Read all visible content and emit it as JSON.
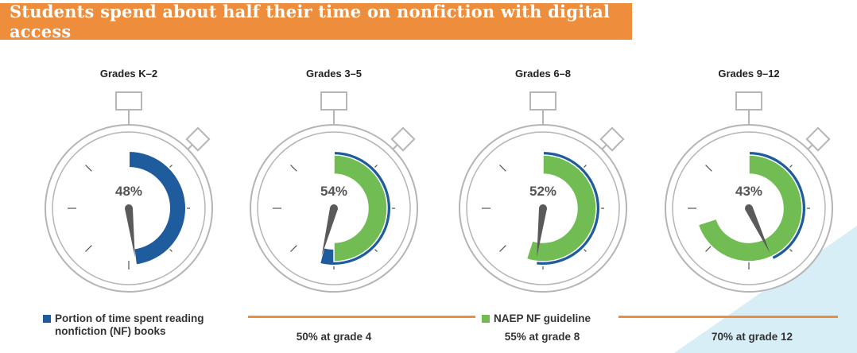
{
  "title": "Students spend about half their time on nonfiction with digital access",
  "colors": {
    "title_bg": "#ee8d3c",
    "nf_time": "#1f5c9e",
    "naep_guideline": "#72bd53",
    "guideline_line": "#ee8d3c",
    "stopwatch_outline": "#b5b5b5",
    "hand": "#5a5a5a",
    "corner_shape": "#d8eef6"
  },
  "chart_data": {
    "type": "radial",
    "title": "Students spend about half their time on nonfiction with digital access",
    "categories": [
      "Grades K–2",
      "Grades 3–5",
      "Grades 6–8",
      "Grades 9–12"
    ],
    "series": [
      {
        "name": "Portion of time spent reading nonfiction (NF) books",
        "values": [
          48,
          54,
          52,
          43
        ],
        "labels": [
          "48%",
          "54%",
          "52%",
          "43%"
        ]
      },
      {
        "name": "NAEP NF guideline",
        "values": [
          null,
          50,
          55,
          70
        ],
        "labels": [
          "",
          "50% at grade 4",
          "55% at grade 8",
          "70% at grade 12"
        ]
      }
    ],
    "unit": "%"
  },
  "legend": {
    "nf_time": "Portion of time spent reading nonfiction (NF) books",
    "naep": "NAEP NF guideline"
  }
}
